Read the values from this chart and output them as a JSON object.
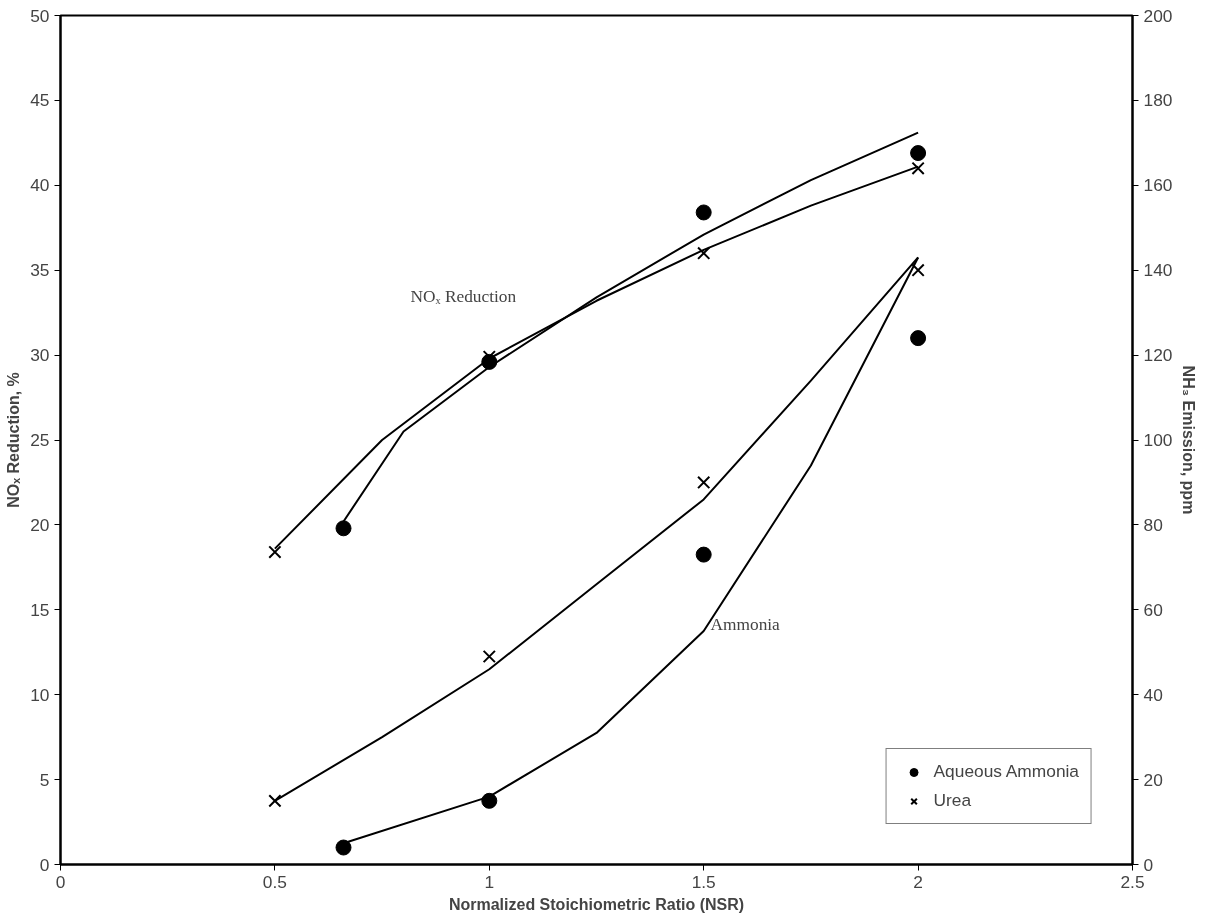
{
  "chart_data": {
    "type": "scatter",
    "xlabel": "Normalized Stoichiometric Ratio (NSR)",
    "ylabel": "NOₓ Reduction, %",
    "y2label": "NH₃ Emission, ppm",
    "xlim": [
      0,
      2.5
    ],
    "xticks": [
      0,
      0.5,
      1,
      1.5,
      2,
      2.5
    ],
    "ylim": [
      0,
      50
    ],
    "yticks": [
      0,
      5,
      10,
      15,
      20,
      25,
      30,
      35,
      40,
      45,
      50
    ],
    "y2lim": [
      0,
      200
    ],
    "y2ticks": [
      0,
      20,
      40,
      60,
      80,
      100,
      120,
      140,
      160,
      180,
      200
    ],
    "grid": false,
    "legend": "bottom right",
    "series": [
      {
        "name": "Aqueous Ammonia",
        "marker": "circle",
        "color": "#000000",
        "x": [
          0.66,
          1,
          1.5,
          2
        ],
        "values": [
          19.8,
          29.6,
          38.4,
          41.9
        ]
      },
      {
        "name": "Urea",
        "marker": "cross",
        "color": "#000000",
        "x": [
          0.5,
          1,
          1.5,
          2
        ],
        "values": [
          18.4,
          29.9,
          36.0,
          41.0
        ]
      },
      {
        "marker": "circle",
        "color": "#000000",
        "axis": "y2",
        "x": [
          0.66,
          1,
          1.5,
          2
        ],
        "values": [
          4,
          15,
          73,
          124
        ]
      },
      {
        "marker": "cross",
        "color": "#000000",
        "axis": "y2",
        "x": [
          0.5,
          1,
          1.5,
          2
        ],
        "values": [
          15,
          49,
          90,
          140
        ]
      },
      {
        "type": "line",
        "color": "#000000",
        "x": [
          0.66,
          0.8,
          1,
          1.25,
          1.5,
          1.75,
          2
        ],
        "values": [
          20.2,
          25.5,
          29.3,
          33.4,
          37.1,
          40.3,
          43.1
        ]
      },
      {
        "type": "line",
        "color": "#000000",
        "x": [
          0.5,
          0.75,
          1,
          1.25,
          1.5,
          1.75,
          2
        ],
        "values": [
          18.6,
          25.0,
          29.8,
          33.2,
          36.2,
          38.8,
          41.1
        ]
      },
      {
        "type": "line",
        "color": "#000000",
        "axis": "y2",
        "x": [
          0.66,
          1,
          1.25,
          1.5,
          1.75,
          2
        ],
        "values": [
          5,
          16,
          31,
          55,
          94,
          143
        ]
      },
      {
        "type": "line",
        "color": "#000000",
        "axis": "y2",
        "x": [
          0.5,
          0.75,
          1,
          1.25,
          1.5,
          1.75,
          2
        ],
        "values": [
          15,
          30,
          46,
          66,
          86,
          114,
          143
        ]
      }
    ],
    "annotations": [
      "NOₓ Reduction",
      "Ammonia"
    ]
  }
}
